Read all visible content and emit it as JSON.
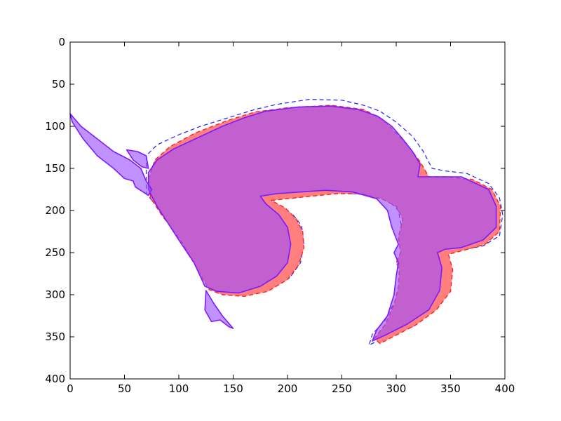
{
  "chart_data": {
    "type": "area",
    "title": "",
    "xlabel": "",
    "ylabel": "",
    "xlim": [
      0,
      400
    ],
    "ylim": [
      400,
      0
    ],
    "y_inverted": true,
    "grid": false,
    "xticks": [
      0,
      50,
      100,
      150,
      200,
      250,
      300,
      350,
      400
    ],
    "yticks": [
      0,
      50,
      100,
      150,
      200,
      250,
      300,
      350,
      400
    ],
    "colors": {
      "axis": "#000000",
      "red_fill": "#ff7f7f",
      "red_dash": "#ff2020",
      "blue_dash": "#1f1fff",
      "purple_fill": "#9b4dff",
      "purple_line": "#7a1cff"
    },
    "series": [
      {
        "style": "blue-dashed-outline",
        "points": [
          [
            70,
            165
          ],
          [
            70,
            135
          ],
          [
            80,
            122
          ],
          [
            100,
            110
          ],
          [
            120,
            100
          ],
          [
            150,
            88
          ],
          [
            170,
            80
          ],
          [
            190,
            74
          ],
          [
            220,
            68
          ],
          [
            250,
            69
          ],
          [
            270,
            75
          ],
          [
            285,
            82
          ],
          [
            300,
            95
          ],
          [
            315,
            112
          ],
          [
            325,
            130
          ],
          [
            333,
            150
          ],
          [
            345,
            153
          ],
          [
            365,
            156
          ],
          [
            385,
            168
          ],
          [
            395,
            185
          ],
          [
            398,
            205
          ],
          [
            395,
            230
          ],
          [
            380,
            242
          ],
          [
            360,
            247
          ],
          [
            350,
            250
          ],
          [
            345,
            254
          ],
          [
            347,
            270
          ],
          [
            345,
            300
          ],
          [
            333,
            320
          ],
          [
            315,
            338
          ],
          [
            290,
            350
          ],
          [
            275,
            360
          ],
          [
            278,
            347
          ],
          [
            290,
            330
          ],
          [
            300,
            305
          ],
          [
            304,
            282
          ],
          [
            305,
            270
          ],
          [
            300,
            265
          ],
          [
            306,
            253
          ],
          [
            303,
            242
          ],
          [
            305,
            220
          ],
          [
            302,
            200
          ],
          [
            292,
            187
          ],
          [
            270,
            181
          ],
          [
            250,
            179
          ],
          [
            230,
            181
          ],
          [
            210,
            184
          ],
          [
            195,
            186
          ],
          [
            185,
            185
          ],
          [
            192,
            195
          ],
          [
            205,
            205
          ],
          [
            213,
            218
          ],
          [
            215,
            240
          ],
          [
            212,
            262
          ],
          [
            202,
            280
          ],
          [
            185,
            293
          ],
          [
            162,
            300
          ],
          [
            140,
            298
          ],
          [
            128,
            292
          ],
          [
            113,
            260
          ],
          [
            100,
            230
          ],
          [
            90,
            212
          ],
          [
            80,
            195
          ],
          [
            70,
            180
          ]
        ]
      },
      {
        "style": "red-filled-dashed",
        "points": [
          [
            72,
            163
          ],
          [
            78,
            140
          ],
          [
            92,
            124
          ],
          [
            115,
            108
          ],
          [
            145,
            93
          ],
          [
            170,
            83
          ],
          [
            200,
            78
          ],
          [
            240,
            75
          ],
          [
            270,
            80
          ],
          [
            288,
            92
          ],
          [
            300,
            108
          ],
          [
            312,
            125
          ],
          [
            322,
            142
          ],
          [
            330,
            160
          ],
          [
            345,
            160
          ],
          [
            370,
            163
          ],
          [
            388,
            175
          ],
          [
            396,
            195
          ],
          [
            395,
            225
          ],
          [
            382,
            240
          ],
          [
            360,
            248
          ],
          [
            348,
            252
          ],
          [
            352,
            270
          ],
          [
            350,
            296
          ],
          [
            337,
            318
          ],
          [
            318,
            336
          ],
          [
            300,
            348
          ],
          [
            285,
            358
          ],
          [
            280,
            352
          ],
          [
            290,
            335
          ],
          [
            298,
            312
          ],
          [
            302,
            290
          ],
          [
            303,
            270
          ],
          [
            300,
            262
          ],
          [
            304,
            250
          ],
          [
            302,
            232
          ],
          [
            306,
            210
          ],
          [
            300,
            195
          ],
          [
            288,
            187
          ],
          [
            268,
            180
          ],
          [
            245,
            180
          ],
          [
            222,
            183
          ],
          [
            200,
            186
          ],
          [
            185,
            188
          ],
          [
            198,
            197
          ],
          [
            208,
            210
          ],
          [
            214,
            225
          ],
          [
            215,
            245
          ],
          [
            210,
            265
          ],
          [
            200,
            282
          ],
          [
            182,
            296
          ],
          [
            160,
            302
          ],
          [
            140,
            300
          ],
          [
            128,
            294
          ],
          [
            118,
            272
          ],
          [
            104,
            240
          ],
          [
            94,
            222
          ],
          [
            84,
            205
          ],
          [
            74,
            185
          ]
        ]
      },
      {
        "style": "purple-filled",
        "points": [
          [
            72,
            155
          ],
          [
            80,
            140
          ],
          [
            95,
            127
          ],
          [
            115,
            115
          ],
          [
            140,
            100
          ],
          [
            160,
            90
          ],
          [
            180,
            82
          ],
          [
            210,
            77
          ],
          [
            240,
            76
          ],
          [
            265,
            80
          ],
          [
            283,
            88
          ],
          [
            296,
            100
          ],
          [
            306,
            115
          ],
          [
            315,
            130
          ],
          [
            322,
            145
          ],
          [
            320,
            160
          ],
          [
            330,
            160
          ],
          [
            360,
            160
          ],
          [
            385,
            175
          ],
          [
            392,
            195
          ],
          [
            392,
            220
          ],
          [
            380,
            235
          ],
          [
            360,
            244
          ],
          [
            345,
            246
          ],
          [
            338,
            250
          ],
          [
            342,
            268
          ],
          [
            340,
            295
          ],
          [
            330,
            318
          ],
          [
            310,
            335
          ],
          [
            290,
            348
          ],
          [
            278,
            355
          ],
          [
            282,
            342
          ],
          [
            292,
            325
          ],
          [
            298,
            300
          ],
          [
            300,
            278
          ],
          [
            302,
            262
          ],
          [
            298,
            250
          ],
          [
            302,
            240
          ],
          [
            296,
            220
          ],
          [
            292,
            200
          ],
          [
            282,
            186
          ],
          [
            260,
            178
          ],
          [
            235,
            176
          ],
          [
            212,
            178
          ],
          [
            190,
            180
          ],
          [
            175,
            183
          ],
          [
            180,
            192
          ],
          [
            192,
            205
          ],
          [
            200,
            220
          ],
          [
            203,
            240
          ],
          [
            200,
            262
          ],
          [
            190,
            278
          ],
          [
            175,
            290
          ],
          [
            155,
            298
          ],
          [
            135,
            296
          ],
          [
            124,
            290
          ],
          [
            114,
            262
          ],
          [
            100,
            235
          ],
          [
            90,
            215
          ],
          [
            80,
            195
          ],
          [
            72,
            175
          ]
        ]
      },
      {
        "style": "purple-filled",
        "points": [
          [
            0,
            85
          ],
          [
            10,
            100
          ],
          [
            25,
            115
          ],
          [
            40,
            130
          ],
          [
            55,
            140
          ],
          [
            65,
            150
          ],
          [
            70,
            165
          ],
          [
            75,
            175
          ],
          [
            72,
            182
          ],
          [
            60,
            172
          ],
          [
            58,
            165
          ],
          [
            50,
            162
          ],
          [
            40,
            150
          ],
          [
            25,
            135
          ],
          [
            12,
            115
          ],
          [
            2,
            95
          ]
        ]
      },
      {
        "style": "purple-filled",
        "points": [
          [
            52,
            128
          ],
          [
            62,
            130
          ],
          [
            70,
            135
          ],
          [
            72,
            150
          ],
          [
            66,
            148
          ],
          [
            58,
            140
          ]
        ]
      },
      {
        "style": "purple-filled",
        "points": [
          [
            125,
            295
          ],
          [
            132,
            310
          ],
          [
            140,
            325
          ],
          [
            150,
            340
          ],
          [
            146,
            338
          ],
          [
            138,
            330
          ],
          [
            130,
            332
          ],
          [
            124,
            318
          ]
        ]
      }
    ]
  }
}
